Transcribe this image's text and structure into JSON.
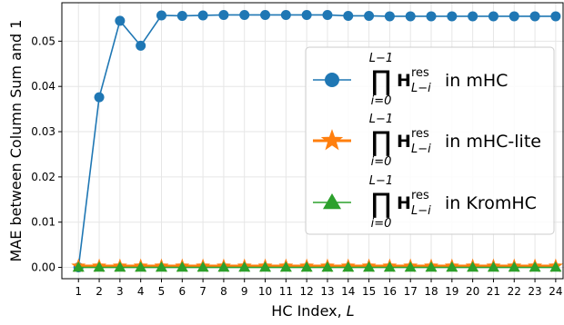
{
  "chart_data": {
    "type": "line",
    "xlabel": "HC Index, L",
    "xlabel_prefix": "HC Index, ",
    "xlabel_var": "L",
    "ylabel": "MAE between Column Sum and 1",
    "x": [
      1,
      2,
      3,
      4,
      5,
      6,
      7,
      8,
      9,
      10,
      11,
      12,
      13,
      14,
      15,
      16,
      17,
      18,
      19,
      20,
      21,
      22,
      23,
      24
    ],
    "xlim": [
      0.2,
      24.4
    ],
    "ylim": [
      -0.0025,
      0.0585
    ],
    "yticks": [
      0.0,
      0.01,
      0.02,
      0.03,
      0.04,
      0.05
    ],
    "ytick_labels": [
      "0.00",
      "0.01",
      "0.02",
      "0.03",
      "0.04",
      "0.05"
    ],
    "grid": true,
    "legend_position": "center-right",
    "series": [
      {
        "label_text": "in mHC",
        "label_superscript": "res",
        "label_subscript": "L−i",
        "label_upper": "L−1",
        "label_lower": "i=0",
        "label_symbol": "∏",
        "label_matrix": "H",
        "color": "#1f77b4",
        "marker": "circle",
        "values": [
          0.0,
          0.0376,
          0.0545,
          0.049,
          0.0557,
          0.0556,
          0.0557,
          0.0558,
          0.0558,
          0.0558,
          0.0558,
          0.0558,
          0.0558,
          0.0556,
          0.0556,
          0.0555,
          0.0555,
          0.0555,
          0.0555,
          0.0555,
          0.0555,
          0.0555,
          0.0555,
          0.0555
        ]
      },
      {
        "label_text": "in mHC-lite",
        "label_superscript": "res",
        "label_subscript": "L−i",
        "label_upper": "L−1",
        "label_lower": "i=0",
        "label_symbol": "∏",
        "label_matrix": "H",
        "color": "#ff7f0e",
        "marker": "star",
        "values": [
          0.0003,
          0.0003,
          0.0003,
          0.0003,
          0.0003,
          0.0003,
          0.0003,
          0.0003,
          0.0003,
          0.0003,
          0.0003,
          0.0003,
          0.0003,
          0.0003,
          0.0003,
          0.0003,
          0.0003,
          0.0003,
          0.0003,
          0.0003,
          0.0003,
          0.0003,
          0.0003,
          0.0003
        ]
      },
      {
        "label_text": "in KromHC",
        "label_superscript": "res",
        "label_subscript": "L−i",
        "label_upper": "L−1",
        "label_lower": "i=0",
        "label_symbol": "∏",
        "label_matrix": "H",
        "color": "#2ca02c",
        "marker": "triangle",
        "values": [
          0.0,
          0.0,
          0.0,
          0.0,
          0.0,
          0.0,
          0.0,
          0.0,
          0.0,
          0.0,
          0.0,
          0.0,
          0.0,
          0.0,
          0.0,
          0.0,
          0.0,
          0.0,
          0.0,
          0.0,
          0.0,
          0.0,
          0.0,
          0.0
        ]
      }
    ]
  }
}
